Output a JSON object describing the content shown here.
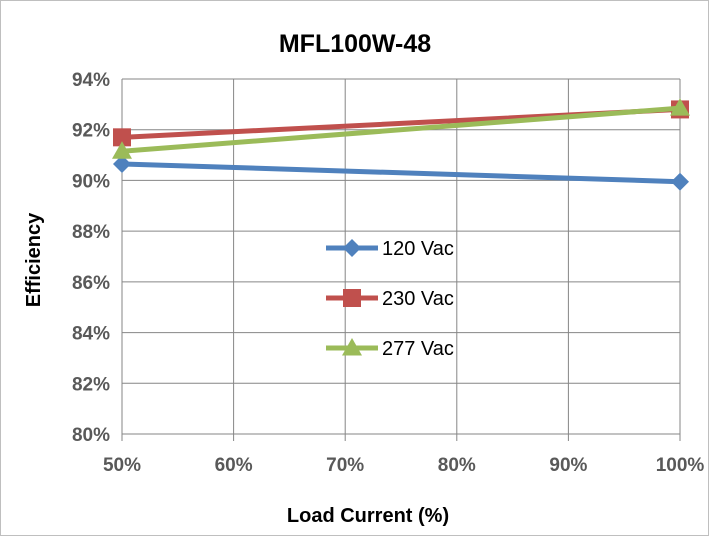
{
  "chart_data": {
    "type": "line",
    "title": "MFL100W-48",
    "xlabel": "Load Current (%)",
    "ylabel": "Efficiency",
    "x": [
      50,
      100
    ],
    "xticks": [
      "50%",
      "60%",
      "70%",
      "80%",
      "90%",
      "100%"
    ],
    "xtick_values": [
      50,
      60,
      70,
      80,
      90,
      100
    ],
    "yticks": [
      "80%",
      "82%",
      "84%",
      "86%",
      "88%",
      "90%",
      "92%",
      "94%"
    ],
    "ytick_values": [
      80,
      82,
      84,
      86,
      88,
      90,
      92,
      94
    ],
    "xlim": [
      50,
      100
    ],
    "ylim": [
      80,
      94
    ],
    "grid": true,
    "legend_position": "center",
    "series": [
      {
        "name": "120 Vac",
        "values": [
          90.65,
          89.95
        ],
        "color": "#4f81bd",
        "marker": "diamond"
      },
      {
        "name": "230 Vac",
        "values": [
          91.7,
          92.8
        ],
        "color": "#c0504d",
        "marker": "square"
      },
      {
        "name": "277 Vac",
        "values": [
          91.15,
          92.85
        ],
        "color": "#9bbb59",
        "marker": "triangle"
      }
    ]
  }
}
